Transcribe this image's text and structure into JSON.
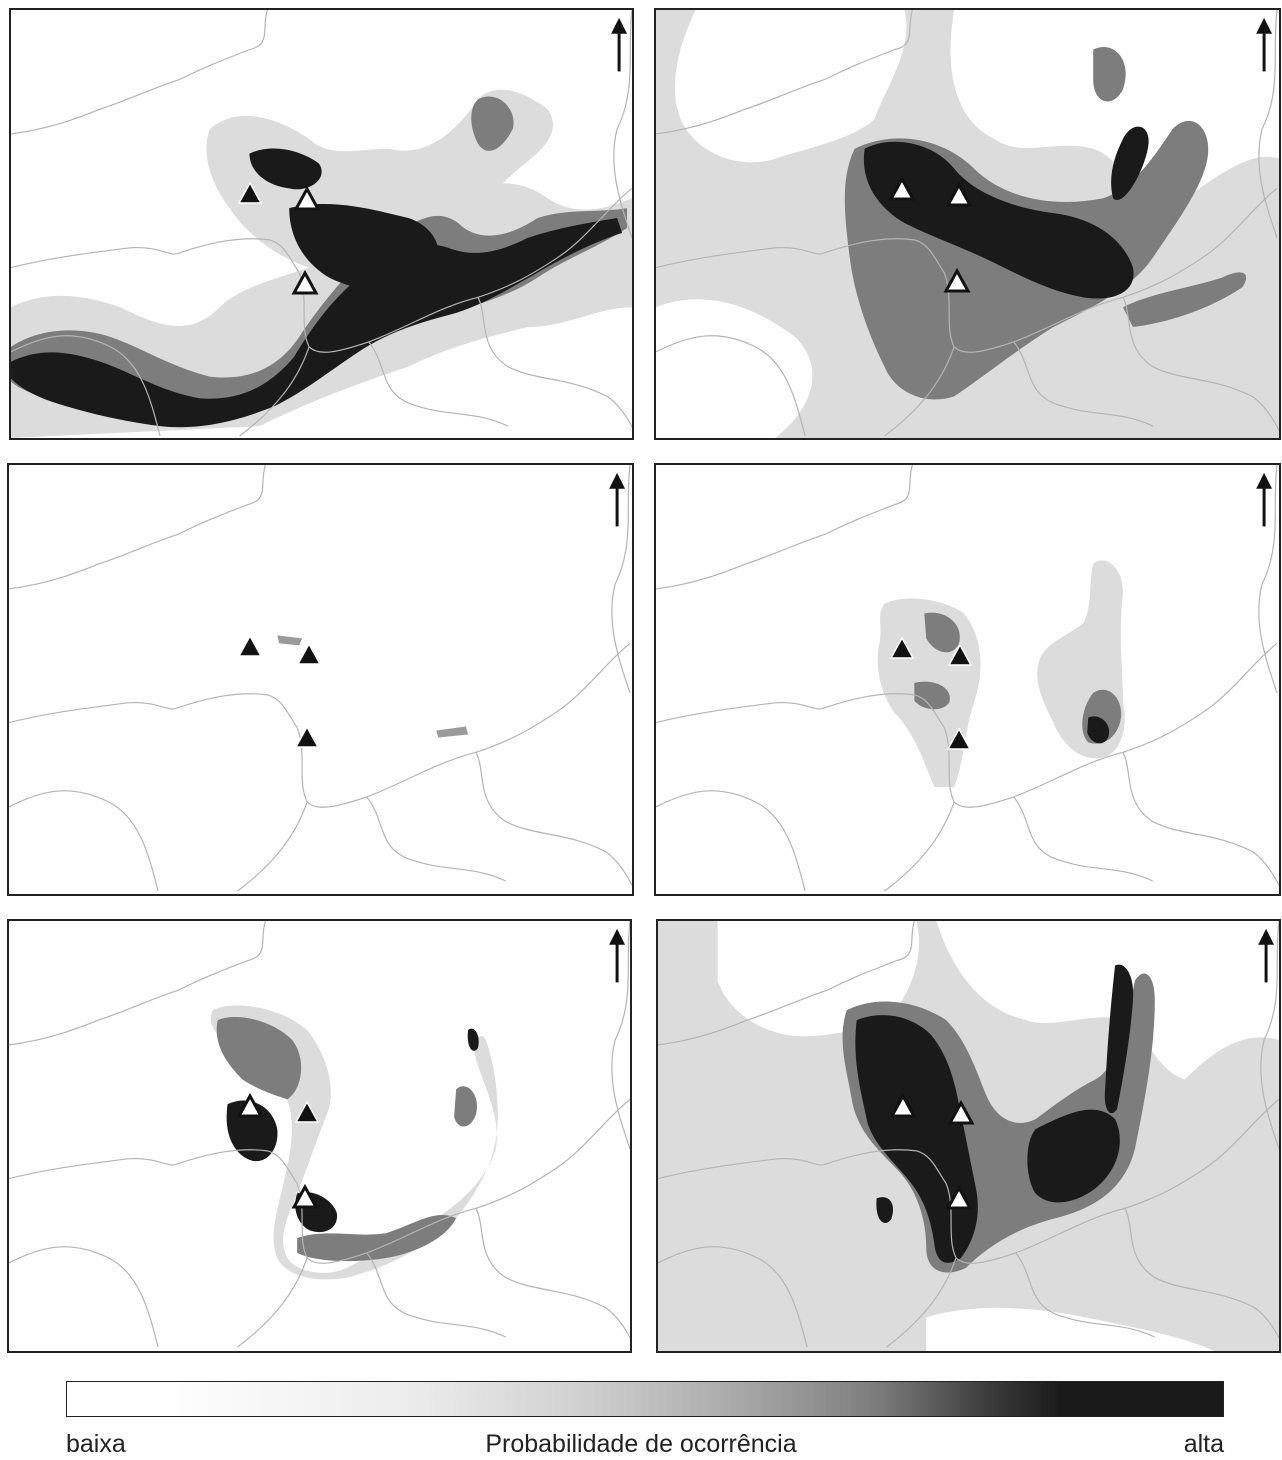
{
  "legend": {
    "low_label": "baixa",
    "title": "Probabilidade de ocorrência",
    "high_label": "alta"
  },
  "colors": {
    "high": "#1a1a1a",
    "medium": "#7d7d7d",
    "low": "#dcdcdc",
    "border_lines": "#b4b4b4",
    "frame": "#222222"
  },
  "panels": [
    {
      "id": "top-left",
      "marker_style": "mixed",
      "background": "white"
    },
    {
      "id": "top-right",
      "marker_style": "mixed",
      "background": "light-gray"
    },
    {
      "id": "middle-left",
      "marker_style": "filled",
      "background": "white"
    },
    {
      "id": "middle-right",
      "marker_style": "filled",
      "background": "white"
    },
    {
      "id": "bottom-left",
      "marker_style": "mixed",
      "background": "white"
    },
    {
      "id": "bottom-right",
      "marker_style": "open",
      "background": "light-gray"
    }
  ],
  "icons": {
    "north_arrow": "north-arrow-icon",
    "occurrence_marker": "triangle-marker-icon"
  }
}
